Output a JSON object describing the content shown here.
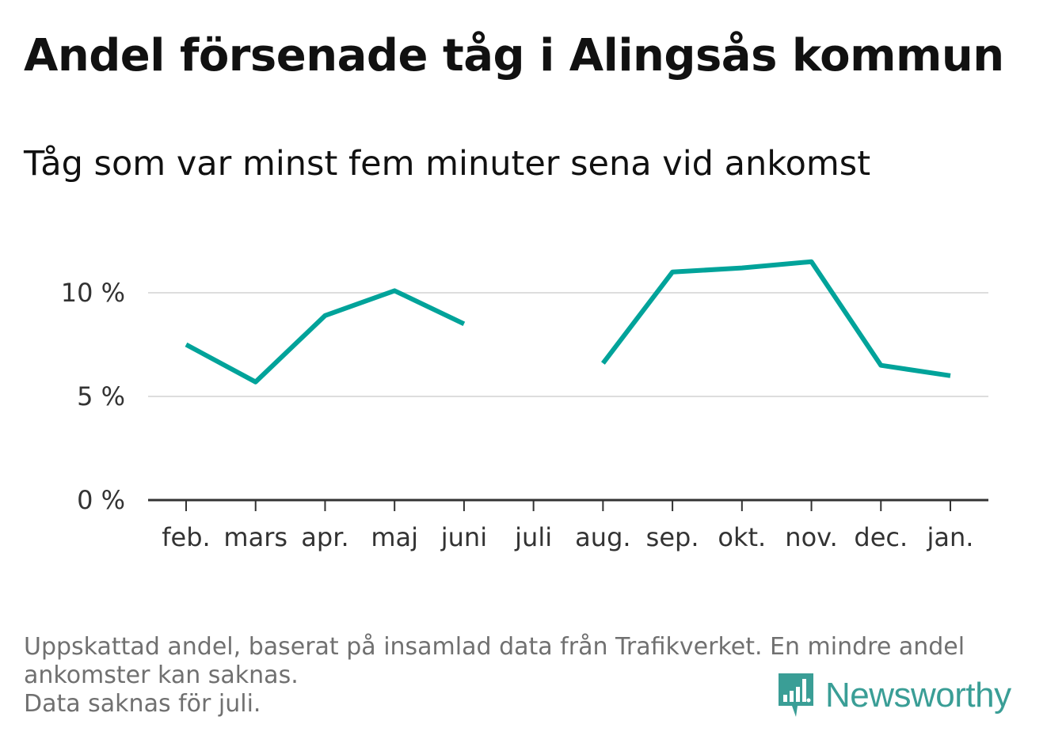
{
  "title": "Andel försenade tåg i Alingsås kommun",
  "subtitle": "Tåg som var minst fem minuter sena vid ankomst",
  "footnote": {
    "line1": "Uppskattad andel, baserat på insamlad data från Trafikverket. En mindre andel",
    "line2": "ankomster kan saknas.",
    "line3": "Data saknas för juli."
  },
  "brand": {
    "name": "Newsworthy",
    "color": "#3a9e96"
  },
  "chart_data": {
    "type": "line",
    "categories": [
      "feb.",
      "mars",
      "apr.",
      "maj",
      "juni",
      "juli",
      "aug.",
      "sep.",
      "okt.",
      "nov.",
      "dec.",
      "jan."
    ],
    "series": [
      {
        "values": [
          7.5,
          5.7,
          8.9,
          10.1,
          8.5,
          null,
          6.6,
          11.0,
          11.2,
          11.5,
          6.5,
          6.0
        ],
        "color": "#00a39a"
      }
    ],
    "yticks": [
      0,
      5,
      10
    ],
    "ytick_labels": [
      "0 %",
      "5 %",
      "10 %"
    ],
    "ylim": [
      0,
      12
    ],
    "grid": true
  }
}
